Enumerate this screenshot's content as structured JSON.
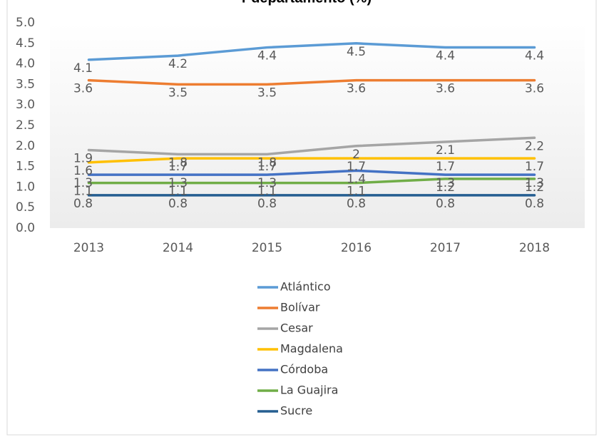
{
  "chart_data": {
    "type": "line",
    "title": "r departamento (%)",
    "categories": [
      "2013",
      "2014",
      "2015",
      "2016",
      "2017",
      "2018"
    ],
    "series": [
      {
        "name": "Atlántico",
        "color": "#5b9bd5",
        "values": [
          4.1,
          4.2,
          4.4,
          4.5,
          4.4,
          4.4
        ]
      },
      {
        "name": "Bolívar",
        "color": "#ed7d31",
        "values": [
          3.6,
          3.5,
          3.5,
          3.6,
          3.6,
          3.6
        ]
      },
      {
        "name": "Cesar",
        "color": "#a5a5a5",
        "values": [
          1.9,
          1.8,
          1.8,
          2.0,
          2.1,
          2.2
        ]
      },
      {
        "name": "Magdalena",
        "color": "#ffc000",
        "values": [
          1.6,
          1.7,
          1.7,
          1.7,
          1.7,
          1.7
        ]
      },
      {
        "name": "Córdoba",
        "color": "#4472c4",
        "values": [
          1.3,
          1.3,
          1.3,
          1.4,
          1.3,
          1.3
        ]
      },
      {
        "name": "La Guajira",
        "color": "#70ad47",
        "values": [
          1.1,
          1.1,
          1.1,
          1.1,
          1.2,
          1.2
        ]
      },
      {
        "name": "Sucre",
        "color": "#255e91",
        "values": [
          0.8,
          0.8,
          0.8,
          0.8,
          0.8,
          0.8
        ]
      }
    ],
    "ylim": [
      0,
      5
    ],
    "yticks": [
      {
        "value": 0,
        "label": "0.0"
      },
      {
        "value": 0.5,
        "label": "0.5"
      },
      {
        "value": 1,
        "label": "1.0"
      },
      {
        "value": 1.5,
        "label": "1.5"
      },
      {
        "value": 2,
        "label": "2.0"
      },
      {
        "value": 2.5,
        "label": "2.5"
      },
      {
        "value": 3,
        "label": "3.0"
      },
      {
        "value": 3.5,
        "label": "3.5"
      },
      {
        "value": 4,
        "label": "4.0"
      },
      {
        "value": 4.5,
        "label": "4.5"
      },
      {
        "value": 5,
        "label": "5.0"
      }
    ],
    "legend": "bottom"
  }
}
